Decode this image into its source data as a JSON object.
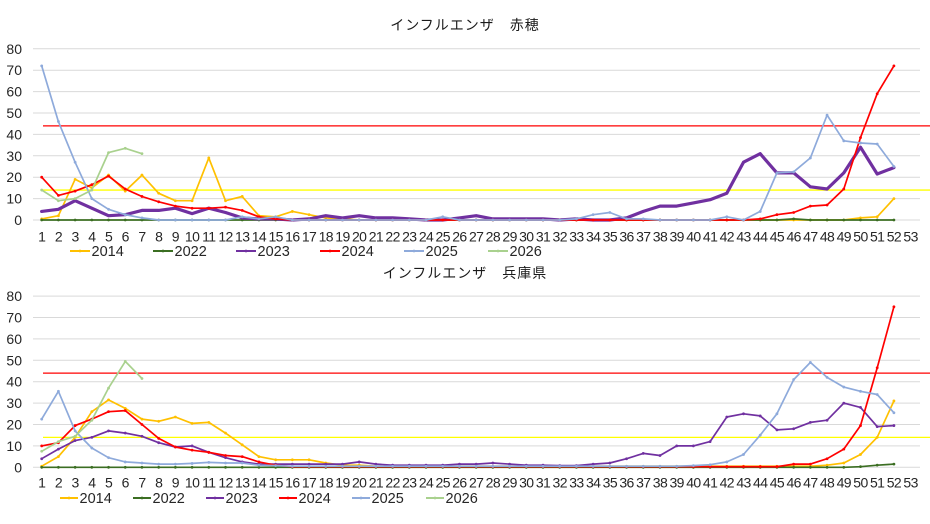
{
  "chart_data": [
    {
      "type": "line",
      "title": "インフルエンザ　赤穂",
      "xlabel": "",
      "ylabel": "",
      "ylim": [
        0,
        80
      ],
      "y_ticks": [
        0,
        10,
        20,
        30,
        40,
        50,
        60,
        70,
        80
      ],
      "grid": true,
      "legend_position": "bottom",
      "categories": [
        1,
        2,
        3,
        4,
        5,
        6,
        7,
        8,
        9,
        10,
        11,
        12,
        13,
        14,
        15,
        16,
        17,
        18,
        19,
        20,
        21,
        22,
        23,
        24,
        25,
        26,
        27,
        28,
        29,
        30,
        31,
        32,
        33,
        34,
        35,
        36,
        37,
        38,
        39,
        40,
        41,
        42,
        43,
        44,
        45,
        46,
        47,
        48,
        49,
        50,
        51,
        52,
        53
      ],
      "reference_lines": [
        {
          "name": "alert-level",
          "value": 44,
          "color": "#ff0000"
        },
        {
          "name": "warning-level",
          "value": 14,
          "color": "#ffff00"
        }
      ],
      "series": [
        {
          "name": "2014",
          "color": "#ffc000",
          "values": [
            0.5,
            2,
            19,
            15,
            21,
            13.5,
            21,
            12.5,
            9,
            9,
            29,
            9,
            11,
            2,
            1.5,
            4,
            2.5,
            1,
            0.5,
            0,
            0,
            0,
            0,
            0,
            0,
            0,
            0,
            0,
            0,
            0,
            0,
            0,
            0,
            0,
            0,
            0,
            0,
            0,
            0,
            0,
            0,
            0,
            0,
            0,
            0,
            0,
            0,
            0,
            0,
            1,
            1.5,
            10
          ]
        },
        {
          "name": "2022",
          "color": "#3b6e22",
          "values": [
            0,
            0,
            0,
            0,
            0,
            0,
            0,
            0,
            0,
            0,
            0,
            0,
            0,
            0,
            0,
            0,
            0,
            0,
            0,
            0,
            0,
            0,
            0,
            0,
            0,
            0,
            0,
            0,
            0,
            0,
            0,
            0,
            0,
            0,
            0,
            0,
            0,
            0,
            0,
            0,
            0,
            0,
            0,
            0,
            0,
            0.5,
            0,
            0,
            0,
            0,
            0,
            0
          ]
        },
        {
          "name": "2023",
          "color": "#7030a0",
          "values": [
            4,
            5,
            9,
            5.5,
            2,
            2.5,
            4.5,
            4.5,
            5.5,
            3,
            5.5,
            3.5,
            1,
            0.5,
            0.5,
            0,
            0.5,
            2,
            1,
            2,
            1,
            1,
            0.5,
            0,
            0,
            1,
            2,
            0.5,
            0.5,
            0.5,
            0.5,
            0,
            0.5,
            0,
            0,
            1,
            4,
            6.5,
            6.5,
            8,
            9.5,
            12.5,
            27,
            31,
            22,
            22,
            15.5,
            14.5,
            22,
            34,
            21.5,
            24.5
          ]
        },
        {
          "name": "2024",
          "color": "#ff0000",
          "values": [
            20,
            11.5,
            13.5,
            16.5,
            20.5,
            14.5,
            11,
            8.5,
            6.5,
            5.5,
            5.5,
            6,
            4.5,
            1.5,
            0.5,
            0,
            0,
            0,
            0,
            0,
            0,
            0,
            0,
            0,
            0,
            0,
            0,
            0,
            0,
            0,
            0,
            0,
            0,
            0,
            0,
            0,
            0,
            0,
            0,
            0,
            0,
            0,
            0,
            0.5,
            2.5,
            3.5,
            6.5,
            7,
            14.5,
            38.5,
            59,
            72
          ]
        },
        {
          "name": "2025",
          "color": "#8eaadb",
          "values": [
            72,
            46,
            27,
            10,
            5,
            2.5,
            1,
            0,
            0,
            0,
            0,
            0,
            1.5,
            0.5,
            1.5,
            0,
            0,
            0,
            0,
            0,
            0,
            0,
            0,
            0,
            1.5,
            0,
            0,
            0,
            0,
            0,
            0,
            0,
            0.5,
            2.5,
            3.5,
            0.5,
            0.5,
            0,
            0,
            0,
            0,
            1.5,
            0,
            4,
            22,
            22.5,
            29,
            49,
            37,
            36,
            35.5,
            25
          ]
        },
        {
          "name": "2026",
          "color": "#a9d18e",
          "values": [
            14,
            9,
            10,
            14,
            31.5,
            33.5,
            31
          ]
        }
      ]
    },
    {
      "type": "line",
      "title": "インフルエンザ　兵庫県",
      "xlabel": "",
      "ylabel": "",
      "ylim": [
        0,
        80
      ],
      "y_ticks": [
        0,
        10,
        20,
        30,
        40,
        50,
        60,
        70,
        80
      ],
      "grid": true,
      "legend_position": "bottom",
      "categories": [
        1,
        2,
        3,
        4,
        5,
        6,
        7,
        8,
        9,
        10,
        11,
        12,
        13,
        14,
        15,
        16,
        17,
        18,
        19,
        20,
        21,
        22,
        23,
        24,
        25,
        26,
        27,
        28,
        29,
        30,
        31,
        32,
        33,
        34,
        35,
        36,
        37,
        38,
        39,
        40,
        41,
        42,
        43,
        44,
        45,
        46,
        47,
        48,
        49,
        50,
        51,
        52,
        53
      ],
      "reference_lines": [
        {
          "name": "alert-level",
          "value": 44,
          "color": "#ff0000"
        },
        {
          "name": "warning-level",
          "value": 14,
          "color": "#ffff00"
        }
      ],
      "series": [
        {
          "name": "2014",
          "color": "#ffc000",
          "values": [
            0.5,
            5,
            14,
            26,
            31.5,
            27.5,
            22.5,
            21.5,
            23.5,
            20.5,
            21,
            16,
            10.5,
            5,
            3.5,
            3.5,
            3.5,
            2,
            1,
            1,
            0.5,
            0.5,
            0.5,
            0.5,
            0.5,
            0.5,
            0.5,
            0.5,
            0.5,
            0.5,
            0.5,
            0.5,
            0.5,
            0.5,
            0.5,
            0.5,
            0.5,
            0.5,
            0.5,
            0.5,
            0.5,
            0.5,
            0.5,
            0.5,
            0.5,
            0.5,
            0.5,
            1,
            2,
            6,
            14,
            31
          ]
        },
        {
          "name": "2022",
          "color": "#3b6e22",
          "values": [
            0,
            0,
            0,
            0,
            0,
            0,
            0,
            0,
            0,
            0,
            0,
            0,
            0,
            0,
            0,
            0,
            0,
            0,
            0,
            0,
            0,
            0,
            0,
            0,
            0,
            0,
            0,
            0,
            0,
            0,
            0,
            0,
            0,
            0,
            0,
            0,
            0,
            0,
            0,
            0,
            0,
            0,
            0,
            0,
            0,
            0,
            0,
            0,
            0,
            0.3,
            1,
            1.5
          ]
        },
        {
          "name": "2023",
          "color": "#7030a0",
          "values": [
            4,
            8.5,
            12.5,
            14,
            17,
            16,
            14.5,
            11.5,
            9.5,
            10,
            7,
            4.5,
            2.5,
            1.5,
            1.5,
            1.5,
            1.5,
            1.5,
            1.5,
            2.5,
            1.5,
            1,
            1,
            1,
            1,
            1.5,
            1.5,
            2,
            1.5,
            1,
            1,
            0.8,
            0.8,
            1.5,
            2,
            4,
            6.5,
            5.5,
            10,
            10,
            12,
            23.5,
            25,
            24,
            17.5,
            18,
            21,
            22,
            30,
            28,
            19,
            19.5
          ]
        },
        {
          "name": "2024",
          "color": "#ff0000",
          "values": [
            10,
            11.5,
            19.5,
            22.5,
            26,
            26.5,
            20,
            13.5,
            9.5,
            8,
            7,
            5.5,
            5,
            2.5,
            1,
            0.3,
            0.3,
            0.3,
            0.3,
            0.3,
            0.3,
            0.3,
            0.3,
            0.3,
            0.3,
            0.3,
            0.3,
            0.3,
            0.3,
            0.3,
            0.3,
            0.3,
            0.3,
            0.3,
            0.3,
            0.3,
            0.3,
            0.3,
            0.3,
            0.3,
            0.3,
            0.3,
            0.3,
            0.3,
            0.3,
            1.5,
            1.5,
            4,
            8.5,
            19.5,
            46.5,
            75
          ]
        },
        {
          "name": "2025",
          "color": "#8eaadb",
          "values": [
            22.5,
            35.5,
            17,
            9,
            4.5,
            2.5,
            2,
            1.5,
            1.5,
            1.8,
            2.3,
            2,
            2,
            1,
            0.8,
            0.5,
            0.5,
            0.5,
            0.5,
            0.5,
            0.5,
            0.5,
            0.5,
            0.5,
            0.5,
            0.5,
            0.5,
            0.5,
            0.5,
            0.5,
            0.5,
            0.5,
            0.5,
            0.5,
            0.5,
            0.5,
            0.5,
            0.5,
            0.5,
            0.8,
            1.2,
            2.5,
            6,
            15,
            25,
            41,
            49,
            42,
            37.5,
            35.5,
            34,
            25.5
          ]
        },
        {
          "name": "2026",
          "color": "#a9d18e",
          "values": [
            7.5,
            12,
            14.5,
            22,
            37,
            49.5,
            41.5
          ]
        }
      ]
    }
  ]
}
